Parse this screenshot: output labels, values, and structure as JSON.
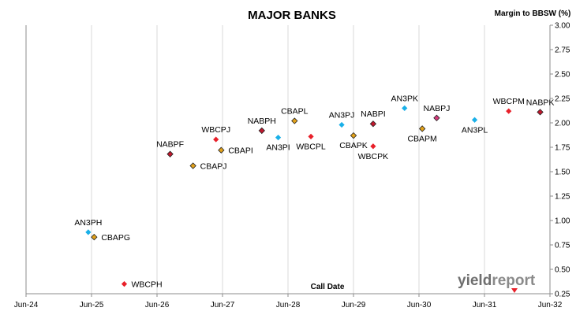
{
  "chart_data": {
    "type": "scatter",
    "title": "MAJOR BANKS",
    "xlabel": "Call Date",
    "ylabel": "Margin to BBSW (%)",
    "x_ticks": [
      "Jun-24",
      "Jun-25",
      "Jun-26",
      "Jun-27",
      "Jun-28",
      "Jun-29",
      "Jun-30",
      "Jun-31",
      "Jun-32"
    ],
    "ylim": [
      0.25,
      3.0
    ],
    "y_ticks": [
      "0.25",
      "0.50",
      "0.75",
      "1.00",
      "1.25",
      "1.50",
      "1.75",
      "2.00",
      "2.25",
      "2.50",
      "2.75",
      "3.00"
    ],
    "grid": "vertical",
    "colors": {
      "AN3": "#1ab0e8",
      "CBA": "#e3a21a",
      "NAB": "#c0182d",
      "WBC": "#e8202a",
      "NABPJ": "#d63a7c"
    },
    "points": [
      {
        "name": "AN3PH",
        "x": 0.95,
        "y": 0.88,
        "color": "#1ab0e8",
        "outline": false,
        "lpos": "above"
      },
      {
        "name": "CBAPG",
        "x": 1.04,
        "y": 0.83,
        "color": "#e3a21a",
        "outline": true,
        "lpos": "right"
      },
      {
        "name": "WBCPH",
        "x": 1.5,
        "y": 0.35,
        "color": "#e8202a",
        "outline": false,
        "lpos": "right"
      },
      {
        "name": "NABPF",
        "x": 2.2,
        "y": 1.68,
        "color": "#c0182d",
        "outline": true,
        "lpos": "above"
      },
      {
        "name": "CBAPJ",
        "x": 2.55,
        "y": 1.56,
        "color": "#e3a21a",
        "outline": true,
        "lpos": "right"
      },
      {
        "name": "WBCPJ",
        "x": 2.9,
        "y": 1.83,
        "color": "#e8202a",
        "outline": false,
        "lpos": "above"
      },
      {
        "name": "CBAPI",
        "x": 2.98,
        "y": 1.72,
        "color": "#e3a21a",
        "outline": true,
        "lpos": "right"
      },
      {
        "name": "NABPH",
        "x": 3.6,
        "y": 1.92,
        "color": "#c0182d",
        "outline": true,
        "lpos": "above"
      },
      {
        "name": "AN3PI",
        "x": 3.85,
        "y": 1.85,
        "color": "#1ab0e8",
        "outline": false,
        "lpos": "below"
      },
      {
        "name": "CBAPL",
        "x": 4.1,
        "y": 2.02,
        "color": "#e3a21a",
        "outline": true,
        "lpos": "above"
      },
      {
        "name": "WBCPL",
        "x": 4.35,
        "y": 1.86,
        "color": "#e8202a",
        "outline": false,
        "lpos": "below"
      },
      {
        "name": "AN3PJ",
        "x": 4.82,
        "y": 1.98,
        "color": "#1ab0e8",
        "outline": false,
        "lpos": "above"
      },
      {
        "name": "CBAPK",
        "x": 5.0,
        "y": 1.87,
        "color": "#e3a21a",
        "outline": true,
        "lpos": "below"
      },
      {
        "name": "NABPI",
        "x": 5.3,
        "y": 1.99,
        "color": "#c0182d",
        "outline": true,
        "lpos": "above"
      },
      {
        "name": "WBCPK",
        "x": 5.3,
        "y": 1.76,
        "color": "#e8202a",
        "outline": false,
        "lpos": "below"
      },
      {
        "name": "AN3PK",
        "x": 5.78,
        "y": 2.15,
        "color": "#1ab0e8",
        "outline": false,
        "lpos": "above"
      },
      {
        "name": "CBAPM",
        "x": 6.05,
        "y": 1.94,
        "color": "#e3a21a",
        "outline": true,
        "lpos": "below"
      },
      {
        "name": "NABPJ",
        "x": 6.27,
        "y": 2.05,
        "color": "#d63a7c",
        "outline": true,
        "lpos": "above"
      },
      {
        "name": "AN3PL",
        "x": 6.85,
        "y": 2.03,
        "color": "#1ab0e8",
        "outline": false,
        "lpos": "below"
      },
      {
        "name": "WBCPM",
        "x": 7.37,
        "y": 2.12,
        "color": "#e8202a",
        "outline": false,
        "lpos": "above"
      },
      {
        "name": "NABPK",
        "x": 7.85,
        "y": 2.11,
        "color": "#c0182d",
        "outline": true,
        "lpos": "above"
      }
    ]
  },
  "watermark": {
    "text_a": "yield",
    "text_b": "report"
  }
}
